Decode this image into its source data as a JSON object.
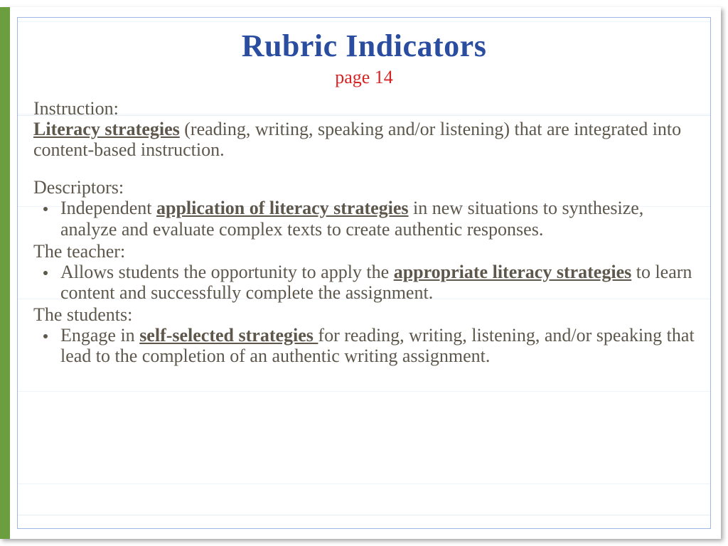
{
  "colors": {
    "title": "#2a4da0",
    "subtitle": "#d62424",
    "body_text": "#5e574c",
    "left_bar": "#6a9e3f",
    "frame_border": "#9db8e6",
    "rule_line": "#e6ecf6"
  },
  "typography": {
    "title_fontsize": 44,
    "subtitle_fontsize": 26,
    "body_fontsize": 26,
    "font_family": "Georgia"
  },
  "title": "Rubric Indicators",
  "subtitle": "page 14",
  "instruction": {
    "label": "Instruction:",
    "lead_bold": "Literacy strategies",
    "lead_rest": " (reading, writing, speaking and/or listening) that are integrated into content-based instruction."
  },
  "descriptors": {
    "label": "Descriptors:",
    "bullet1_pre": "Independent ",
    "bullet1_bold": "application of literacy strategies",
    "bullet1_post": " in new situations to synthesize, analyze and evaluate complex texts to create authentic responses."
  },
  "teacher": {
    "label": "The teacher:",
    "bullet1_pre": "Allows students the opportunity to apply the ",
    "bullet1_bold": "appropriate literacy strategies",
    "bullet1_post": " to learn content and successfully complete the assignment."
  },
  "students": {
    "label": "The students:",
    "bullet1_pre": "Engage in ",
    "bullet1_bold": "self-selected strategies ",
    "bullet1_post": "for reading, writing, listening, and/or speaking that lead to the completion of an authentic writing assignment."
  }
}
